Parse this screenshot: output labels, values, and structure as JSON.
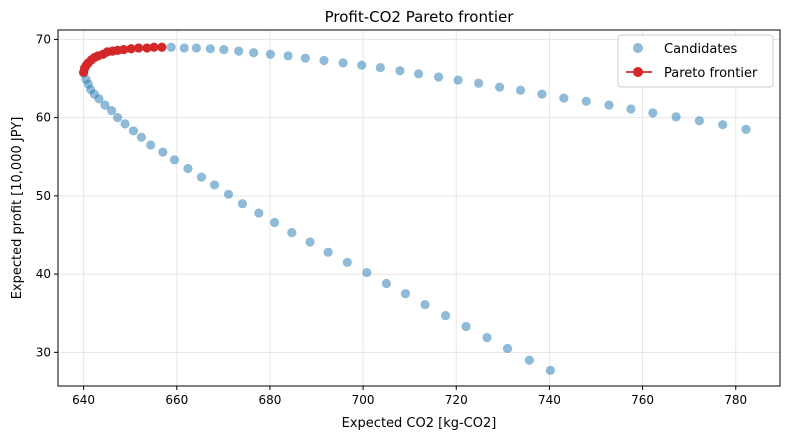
{
  "chart_data": {
    "type": "scatter",
    "title": "Profit-CO2 Pareto frontier",
    "xlabel": "Expected CO2 [kg-CO2]",
    "ylabel": "Expected profit [10,000 JPY]",
    "xlim": [
      634.5,
      789.5
    ],
    "ylim": [
      25.7,
      71.2
    ],
    "xticks": [
      640,
      660,
      680,
      700,
      720,
      740,
      760,
      780
    ],
    "yticks": [
      30,
      40,
      50,
      60,
      70
    ],
    "grid": true,
    "legend_position": "top-right",
    "colors": {
      "candidates": "#1f77b4",
      "pareto": "#d62728"
    },
    "series": [
      {
        "name": "Candidates",
        "kind": "scatter",
        "points": [
          [
            640.0,
            65.7
          ],
          [
            640.5,
            64.9
          ],
          [
            641.0,
            64.3
          ],
          [
            641.5,
            63.6
          ],
          [
            642.3,
            63.0
          ],
          [
            643.3,
            62.4
          ],
          [
            644.6,
            61.6
          ],
          [
            646.0,
            60.9
          ],
          [
            647.3,
            60.0
          ],
          [
            648.9,
            59.2
          ],
          [
            650.7,
            58.3
          ],
          [
            652.4,
            57.5
          ],
          [
            654.4,
            56.5
          ],
          [
            657.0,
            55.6
          ],
          [
            659.5,
            54.6
          ],
          [
            662.4,
            53.5
          ],
          [
            665.3,
            52.4
          ],
          [
            668.1,
            51.4
          ],
          [
            671.1,
            50.2
          ],
          [
            674.1,
            49.0
          ],
          [
            677.6,
            47.8
          ],
          [
            681.0,
            46.6
          ],
          [
            684.7,
            45.3
          ],
          [
            688.6,
            44.1
          ],
          [
            692.5,
            42.8
          ],
          [
            696.6,
            41.5
          ],
          [
            700.8,
            40.2
          ],
          [
            705.0,
            38.8
          ],
          [
            709.1,
            37.5
          ],
          [
            713.3,
            36.1
          ],
          [
            717.7,
            34.7
          ],
          [
            722.1,
            33.3
          ],
          [
            726.6,
            31.9
          ],
          [
            731.0,
            30.5
          ],
          [
            735.7,
            29.0
          ],
          [
            740.2,
            27.7
          ],
          [
            658.8,
            69.0
          ],
          [
            661.6,
            68.9
          ],
          [
            664.2,
            68.9
          ],
          [
            667.2,
            68.8
          ],
          [
            670.1,
            68.7
          ],
          [
            673.3,
            68.5
          ],
          [
            676.5,
            68.3
          ],
          [
            680.1,
            68.1
          ],
          [
            683.9,
            67.9
          ],
          [
            687.6,
            67.6
          ],
          [
            691.6,
            67.3
          ],
          [
            695.7,
            67.0
          ],
          [
            699.7,
            66.7
          ],
          [
            703.7,
            66.4
          ],
          [
            707.9,
            66.0
          ],
          [
            711.9,
            65.6
          ],
          [
            716.2,
            65.2
          ],
          [
            720.4,
            64.8
          ],
          [
            724.8,
            64.4
          ],
          [
            729.3,
            63.9
          ],
          [
            733.8,
            63.5
          ],
          [
            738.4,
            63.0
          ],
          [
            743.1,
            62.5
          ],
          [
            747.9,
            62.1
          ],
          [
            752.8,
            61.6
          ],
          [
            757.5,
            61.1
          ],
          [
            762.2,
            60.6
          ],
          [
            767.2,
            60.1
          ],
          [
            772.2,
            59.6
          ],
          [
            777.2,
            59.1
          ],
          [
            782.2,
            58.5
          ]
        ]
      },
      {
        "name": "Pareto frontier",
        "kind": "line",
        "points": [
          [
            640.0,
            65.8
          ],
          [
            640.2,
            66.3
          ],
          [
            640.6,
            66.7
          ],
          [
            641.0,
            67.0
          ],
          [
            641.7,
            67.4
          ],
          [
            642.4,
            67.7
          ],
          [
            643.1,
            67.9
          ],
          [
            644.2,
            68.1
          ],
          [
            645.1,
            68.4
          ],
          [
            646.2,
            68.5
          ],
          [
            647.3,
            68.6
          ],
          [
            648.6,
            68.7
          ],
          [
            650.2,
            68.8
          ],
          [
            651.8,
            68.9
          ],
          [
            653.6,
            68.9
          ],
          [
            655.1,
            69.0
          ],
          [
            656.8,
            69.0
          ]
        ]
      }
    ]
  }
}
